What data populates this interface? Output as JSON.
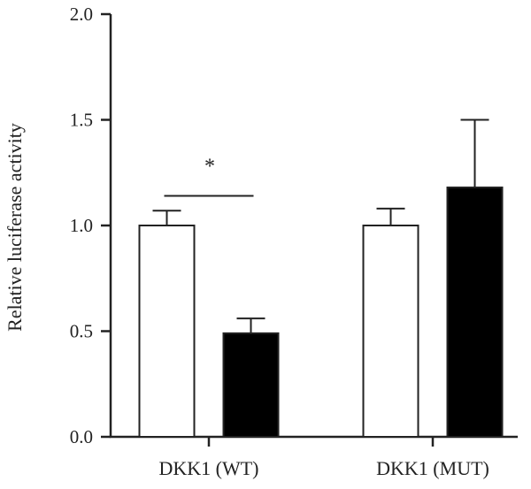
{
  "chart_data": {
    "type": "bar",
    "title": "",
    "xlabel": "",
    "ylabel": "Relative luciferase activity",
    "ylim": [
      0,
      2.0
    ],
    "yticks": [
      0.0,
      0.5,
      1.0,
      1.5,
      2.0
    ],
    "ytick_labels": [
      "0.0",
      "0.5",
      "1.0",
      "1.5",
      "2.0"
    ],
    "grid": false,
    "legend": "none",
    "categories": [
      "DKK1 (WT)",
      "DKK1 (MUT)"
    ],
    "series": [
      {
        "fill": "#ffffff",
        "values": [
          1.0,
          1.0
        ],
        "errors": [
          0.07,
          0.08
        ]
      },
      {
        "fill": "#000000",
        "values": [
          0.49,
          1.18
        ],
        "errors": [
          0.07,
          0.32
        ]
      }
    ],
    "annotations": [
      {
        "text": "*",
        "category_index": 0,
        "y": 1.14
      }
    ]
  }
}
